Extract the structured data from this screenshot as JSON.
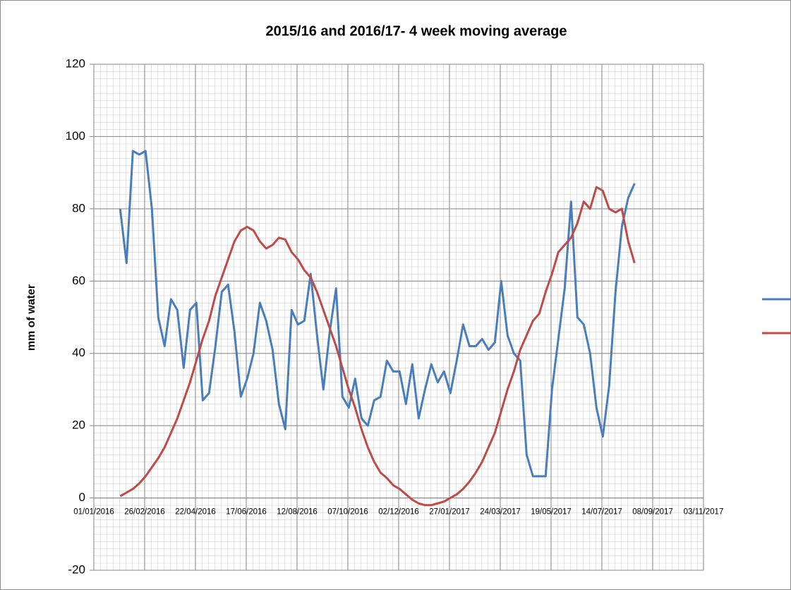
{
  "chart_data": {
    "type": "line",
    "title": "2015/16 and 2016/17- 4 week moving average",
    "y_label": "mm of water",
    "x": [
      "30/01/2016",
      "06/02/2016",
      "13/02/2016",
      "20/02/2016",
      "27/02/2016",
      "05/03/2016",
      "12/03/2016",
      "19/03/2016",
      "26/03/2016",
      "02/04/2016",
      "09/04/2016",
      "16/04/2016",
      "23/04/2016",
      "30/04/2016",
      "07/05/2016",
      "14/05/2016",
      "21/05/2016",
      "28/05/2016",
      "04/06/2016",
      "11/06/2016",
      "18/06/2016",
      "25/06/2016",
      "02/07/2016",
      "09/07/2016",
      "16/07/2016",
      "23/07/2016",
      "30/07/2016",
      "06/08/2016",
      "13/08/2016",
      "20/08/2016",
      "27/08/2016",
      "03/09/2016",
      "10/09/2016",
      "17/09/2016",
      "24/09/2016",
      "01/10/2016",
      "08/10/2016",
      "15/10/2016",
      "22/10/2016",
      "29/10/2016",
      "05/11/2016",
      "12/11/2016",
      "19/11/2016",
      "26/11/2016",
      "03/12/2016",
      "10/12/2016",
      "17/12/2016",
      "24/12/2016",
      "31/12/2016",
      "07/01/2017",
      "14/01/2017",
      "21/01/2017",
      "28/01/2017",
      "04/02/2017",
      "11/02/2017",
      "18/02/2017",
      "25/02/2017",
      "04/03/2017",
      "11/03/2017",
      "18/03/2017",
      "25/03/2017",
      "01/04/2017",
      "08/04/2017",
      "15/04/2017",
      "22/04/2017",
      "29/04/2017",
      "06/05/2017",
      "13/05/2017",
      "20/05/2017",
      "27/05/2017",
      "03/06/2017",
      "10/06/2017",
      "17/06/2017",
      "24/06/2017",
      "01/07/2017",
      "08/07/2017",
      "15/07/2017",
      "22/07/2017",
      "29/07/2017",
      "05/08/2017",
      "12/08/2017",
      "19/08/2017"
    ],
    "series": [
      {
        "color": "#4a7ebb",
        "values": [
          80,
          65,
          96,
          95,
          96,
          80,
          50,
          42,
          55,
          52,
          36,
          52,
          54,
          27,
          29,
          42,
          57,
          59,
          46,
          28,
          33,
          40,
          54,
          49,
          41,
          26,
          19,
          52,
          48,
          49,
          62,
          45,
          30,
          46,
          58,
          28,
          25,
          33,
          22,
          20,
          27,
          28,
          38,
          35,
          35,
          26,
          37,
          22,
          30,
          37,
          32,
          35,
          29,
          38,
          48,
          42,
          42,
          44,
          41,
          43,
          60,
          45,
          40,
          38,
          12,
          6,
          6,
          6,
          30,
          44,
          58,
          82,
          50,
          48,
          40,
          25,
          17,
          31,
          57,
          75,
          83,
          87
        ]
      },
      {
        "color": "#be4b48",
        "values": [
          0.5,
          1.5,
          2.5,
          4,
          6,
          8.5,
          11,
          14,
          18,
          22,
          27,
          32,
          38,
          44,
          49,
          56,
          61,
          66,
          71,
          74,
          75,
          74,
          71,
          69,
          70,
          72,
          71.5,
          68,
          66,
          63,
          61,
          57,
          52,
          47,
          42,
          36,
          30,
          25,
          19,
          14,
          10,
          7,
          5.5,
          3.5,
          2.5,
          1,
          -0.5,
          -1.5,
          -2,
          -2,
          -1.5,
          -1,
          0,
          1,
          2.5,
          4.5,
          7,
          10,
          14,
          18,
          24,
          30,
          35,
          41,
          45,
          49,
          51,
          57,
          62,
          68,
          70,
          72,
          76,
          82,
          80,
          86,
          85,
          80,
          79,
          80,
          71,
          65
        ]
      }
    ],
    "xlim": [
      "01/01/2016",
      "03/11/2017"
    ],
    "xticks": [
      "01/01/2016",
      "26/02/2016",
      "22/04/2016",
      "17/06/2016",
      "12/08/2016",
      "07/10/2016",
      "02/12/2016",
      "27/01/2017",
      "24/03/2017",
      "19/05/2017",
      "14/07/2017",
      "08/09/2017",
      "03/11/2017"
    ],
    "ylim": [
      -20,
      120
    ],
    "yticks": [
      -20,
      0,
      20,
      40,
      60,
      80,
      100,
      120
    ],
    "grid": true,
    "legend": "right"
  }
}
